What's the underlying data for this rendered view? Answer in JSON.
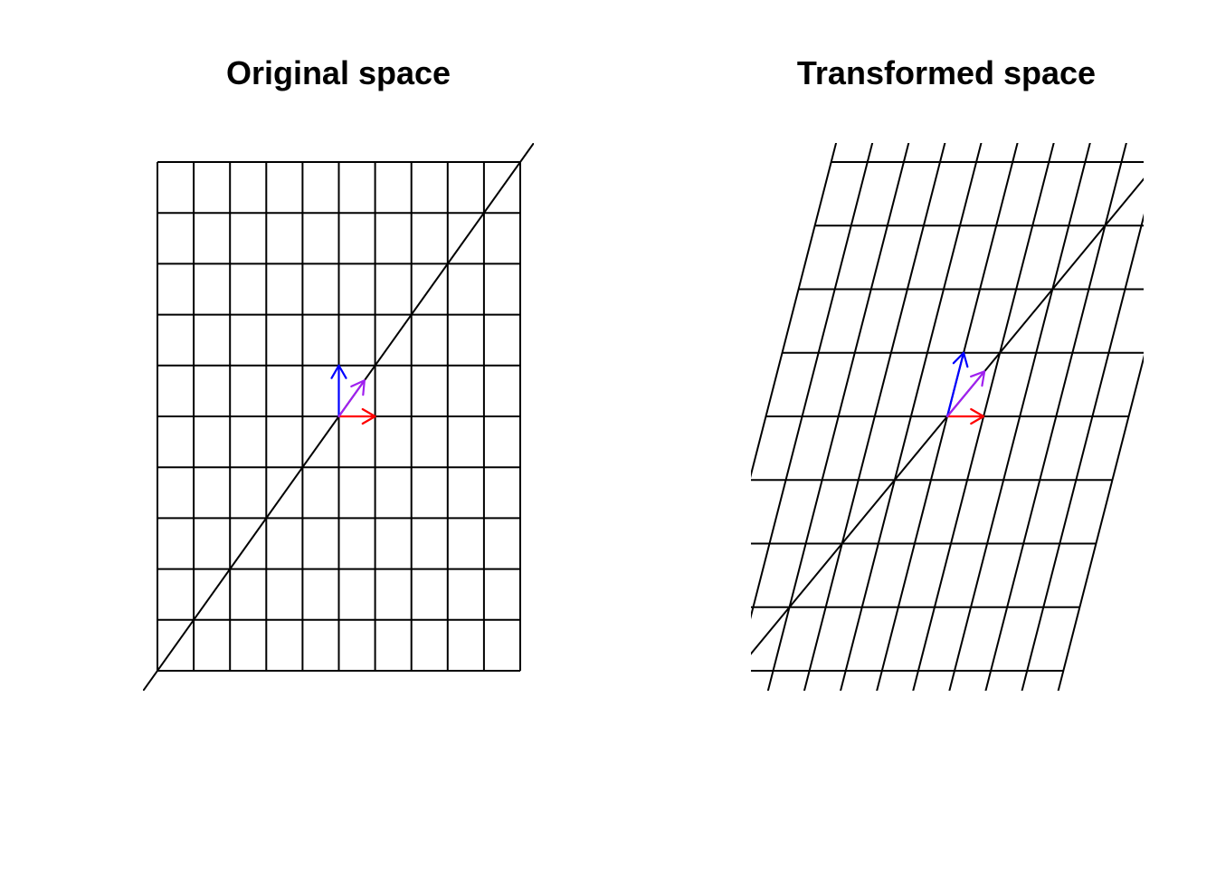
{
  "panels": [
    {
      "id": "original",
      "title": "Original space",
      "matrix": [
        [
          1,
          0
        ],
        [
          0,
          1
        ]
      ]
    },
    {
      "id": "transformed",
      "title": "Transformed space",
      "matrix": [
        [
          1,
          0.45
        ],
        [
          0,
          1.25
        ]
      ]
    }
  ],
  "grid": {
    "x_range": [
      -5,
      5
    ],
    "y_range": [
      -5,
      5
    ],
    "step": 1
  },
  "diagonal": {
    "slope": 1,
    "intercept": 0
  },
  "vectors": [
    {
      "name": "basis-x",
      "components": [
        1,
        0
      ],
      "color": "#FF0000"
    },
    {
      "name": "basis-y",
      "components": [
        0,
        1
      ],
      "color": "#0000FF"
    },
    {
      "name": "diagonal-unit",
      "components": [
        0.707,
        0.707
      ],
      "color": "#A020F0"
    }
  ],
  "colors": {
    "grid": "#000000",
    "background": "#FFFFFF"
  }
}
